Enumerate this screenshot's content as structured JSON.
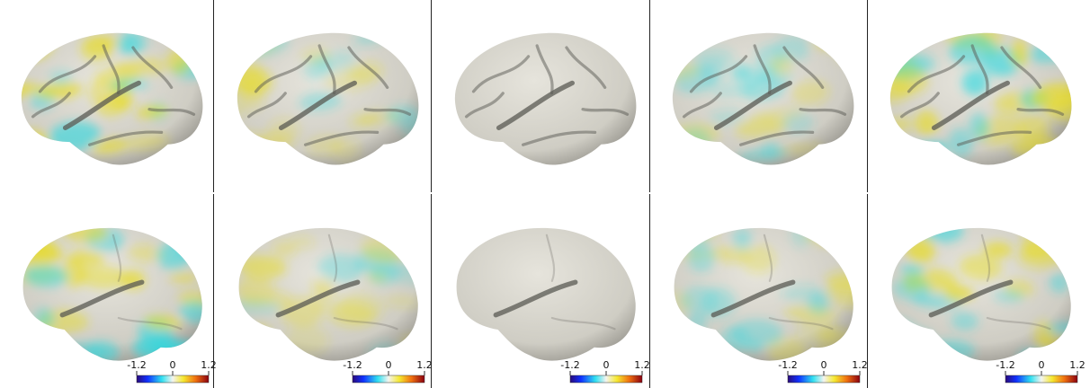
{
  "colorbars": [
    {
      "lim": [
        -1.2,
        1.2
      ],
      "ticks": [
        -1.2,
        0,
        1.2
      ]
    },
    {
      "lim": [
        -1.2,
        1.2
      ],
      "ticks": [
        -1.2,
        0,
        1.2
      ]
    },
    {
      "lim": [
        -1.2,
        1.2
      ],
      "ticks": [
        -1.2,
        0,
        1.2
      ]
    },
    {
      "lim": [
        -1.2,
        1.2
      ],
      "ticks": [
        -1.2,
        0,
        1.2
      ]
    },
    {
      "lim": [
        -1.2,
        1.2
      ],
      "ticks": [
        -1.2,
        0,
        1.2
      ]
    }
  ]
}
